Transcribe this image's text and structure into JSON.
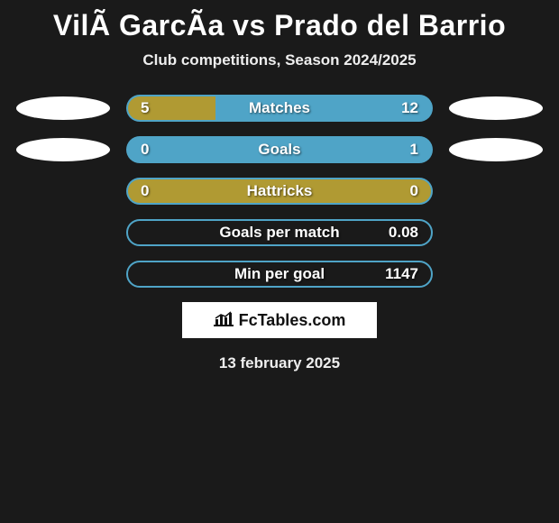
{
  "title": "VilÃ  GarcÃ­a vs Prado del Barrio",
  "subtitle": "Club competitions, Season 2024/2025",
  "colors": {
    "left": "#b09a33",
    "right": "#4fa4c7",
    "ellipse": "#ffffff",
    "background": "#1a1a1a"
  },
  "rows": [
    {
      "label": "Matches",
      "left_value": "5",
      "right_value": "12",
      "left_pct": 29,
      "right_pct": 71,
      "show_ellipses": true,
      "outline": false
    },
    {
      "label": "Goals",
      "left_value": "0",
      "right_value": "1",
      "left_pct": 0,
      "right_pct": 100,
      "show_ellipses": true,
      "outline": false
    },
    {
      "label": "Hattricks",
      "left_value": "0",
      "right_value": "0",
      "left_pct": 100,
      "right_pct": 0,
      "show_ellipses": false,
      "outline": false
    },
    {
      "label": "Goals per match",
      "left_value": "",
      "right_value": "0.08",
      "left_pct": 0,
      "right_pct": 0,
      "show_ellipses": false,
      "outline": true
    },
    {
      "label": "Min per goal",
      "left_value": "",
      "right_value": "1147",
      "left_pct": 0,
      "right_pct": 0,
      "show_ellipses": false,
      "outline": true
    }
  ],
  "logo_text": "FcTables.com",
  "date_text": "13 february 2025"
}
